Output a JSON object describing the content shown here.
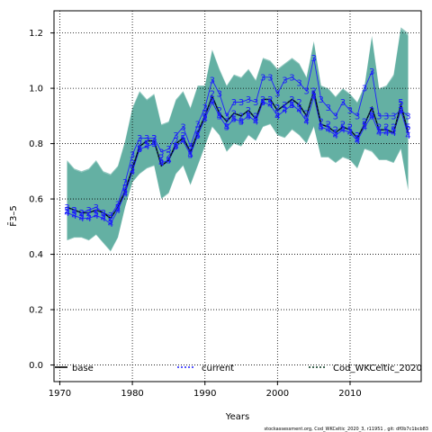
{
  "chart_data": {
    "type": "line",
    "title": "",
    "xlabel": "Years",
    "ylabel": "F̄3–5",
    "xlim": [
      1969.2,
      2019.8
    ],
    "ylim": [
      -0.06,
      1.28
    ],
    "xticks": [
      1970,
      1980,
      1990,
      2000,
      2010
    ],
    "xtick_labels": [
      "1970",
      "1980",
      "1990",
      "2000",
      "2010"
    ],
    "yticks": [
      0.0,
      0.2,
      0.4,
      0.6,
      0.8,
      1.0,
      1.2
    ],
    "ytick_labels": [
      "0.0",
      "0.2",
      "0.4",
      "0.6",
      "0.8",
      "1.0",
      "1.2"
    ],
    "grid": true,
    "years": [
      1971,
      1972,
      1973,
      1974,
      1975,
      1976,
      1977,
      1978,
      1979,
      1980,
      1981,
      1982,
      1983,
      1984,
      1985,
      1986,
      1987,
      1988,
      1989,
      1990,
      1991,
      1992,
      1993,
      1994,
      1995,
      1996,
      1997,
      1998,
      1999,
      2000,
      2001,
      2002,
      2003,
      2004,
      2005,
      2006,
      2007,
      2008,
      2009,
      2010,
      2011,
      2012,
      2013,
      2014,
      2015,
      2016,
      2017,
      2018
    ],
    "band_upper": [
      0.74,
      0.71,
      0.7,
      0.71,
      0.74,
      0.7,
      0.69,
      0.72,
      0.81,
      0.93,
      0.99,
      0.96,
      0.98,
      0.87,
      0.88,
      0.96,
      0.99,
      0.93,
      1.01,
      1.01,
      1.14,
      1.07,
      1.01,
      1.05,
      1.04,
      1.07,
      1.03,
      1.11,
      1.1,
      1.07,
      1.09,
      1.11,
      1.09,
      1.04,
      1.17,
      1.01,
      1.0,
      0.97,
      1.0,
      0.98,
      0.95,
      1.01,
      1.19,
      1.0,
      1.01,
      1.05,
      1.22,
      1.2
    ],
    "band_lower": [
      0.45,
      0.46,
      0.46,
      0.45,
      0.47,
      0.44,
      0.41,
      0.46,
      0.57,
      0.66,
      0.69,
      0.71,
      0.72,
      0.6,
      0.62,
      0.69,
      0.72,
      0.65,
      0.72,
      0.79,
      0.86,
      0.83,
      0.77,
      0.8,
      0.79,
      0.83,
      0.81,
      0.86,
      0.87,
      0.83,
      0.82,
      0.85,
      0.83,
      0.8,
      0.86,
      0.75,
      0.75,
      0.73,
      0.75,
      0.74,
      0.71,
      0.78,
      0.77,
      0.74,
      0.74,
      0.73,
      0.78,
      0.63
    ],
    "band_colors": [
      "#5fada0",
      "#7ebdb4",
      "#86a9a9"
    ],
    "series": [
      {
        "name": "base",
        "color": "#000000",
        "dash": "solid"
      },
      {
        "name": "current",
        "color": "#1f1fff",
        "dash": "dotted"
      },
      {
        "name": "Cod_WKCeltic_2020",
        "color": "#00331a",
        "dash": "dotted"
      }
    ],
    "center_line": [
      0.57,
      0.56,
      0.55,
      0.55,
      0.56,
      0.55,
      0.53,
      0.57,
      0.63,
      0.71,
      0.79,
      0.81,
      0.81,
      0.72,
      0.74,
      0.8,
      0.82,
      0.77,
      0.84,
      0.9,
      0.97,
      0.91,
      0.88,
      0.91,
      0.9,
      0.92,
      0.89,
      0.96,
      0.96,
      0.92,
      0.94,
      0.96,
      0.94,
      0.9,
      0.99,
      0.87,
      0.86,
      0.84,
      0.86,
      0.85,
      0.82,
      0.87,
      0.93,
      0.85,
      0.85,
      0.84,
      0.94,
      0.84
    ],
    "markers": [
      {
        "label": "3",
        "values": [
          0.57,
          0.56,
          0.55,
          0.56,
          0.57,
          0.55,
          0.54,
          0.58,
          0.66,
          0.76,
          0.82,
          0.82,
          0.82,
          0.77,
          0.78,
          0.83,
          0.86,
          0.79,
          0.87,
          0.93,
          1.03,
          0.98,
          0.9,
          0.95,
          0.95,
          0.96,
          0.95,
          1.04,
          1.04,
          0.98,
          1.03,
          1.04,
          1.02,
          0.99,
          1.11,
          0.96,
          0.93,
          0.9,
          0.95,
          0.92,
          0.9,
          1.0,
          1.06,
          0.9,
          0.9,
          0.9,
          0.92,
          0.9
        ]
      },
      {
        "label": "2",
        "values": [
          0.56,
          0.56,
          0.55,
          0.55,
          0.56,
          0.54,
          0.53,
          0.57,
          0.64,
          0.73,
          0.8,
          0.81,
          0.82,
          0.75,
          0.76,
          0.81,
          0.83,
          0.78,
          0.85,
          0.91,
          0.98,
          0.92,
          0.88,
          0.91,
          0.9,
          0.92,
          0.9,
          0.96,
          0.96,
          0.93,
          0.94,
          0.96,
          0.95,
          0.91,
          0.99,
          0.88,
          0.87,
          0.85,
          0.87,
          0.86,
          0.83,
          0.88,
          0.92,
          0.86,
          0.86,
          0.86,
          0.94,
          0.85
        ]
      },
      {
        "label": "4",
        "values": [
          0.55,
          0.54,
          0.53,
          0.53,
          0.54,
          0.53,
          0.51,
          0.56,
          0.62,
          0.7,
          0.78,
          0.79,
          0.8,
          0.73,
          0.74,
          0.79,
          0.81,
          0.76,
          0.83,
          0.89,
          0.95,
          0.9,
          0.86,
          0.89,
          0.88,
          0.9,
          0.88,
          0.95,
          0.94,
          0.9,
          0.92,
          0.94,
          0.92,
          0.88,
          0.97,
          0.86,
          0.85,
          0.83,
          0.85,
          0.84,
          0.81,
          0.86,
          0.9,
          0.84,
          0.84,
          0.84,
          0.92,
          0.83
        ]
      },
      {
        "label": "5",
        "values": [
          0.56,
          0.55,
          0.54,
          0.54,
          0.55,
          0.54,
          0.52,
          0.57,
          0.63,
          0.71,
          0.78,
          0.8,
          0.8,
          0.74,
          0.74,
          0.79,
          0.82,
          0.76,
          0.83,
          0.9,
          0.96,
          0.9,
          0.86,
          0.89,
          0.88,
          0.9,
          0.89,
          0.95,
          0.95,
          0.91,
          0.93,
          0.94,
          0.93,
          0.89,
          0.98,
          0.86,
          0.86,
          0.84,
          0.86,
          0.85,
          0.82,
          0.87,
          0.9,
          0.85,
          0.85,
          0.85,
          0.95,
          0.86
        ]
      }
    ],
    "legend_placement": "bottom"
  },
  "footer_text": "stockassessment.org, Cod_WKCeltic_2020_3, r11951 , git: df0b7c1bcb83"
}
